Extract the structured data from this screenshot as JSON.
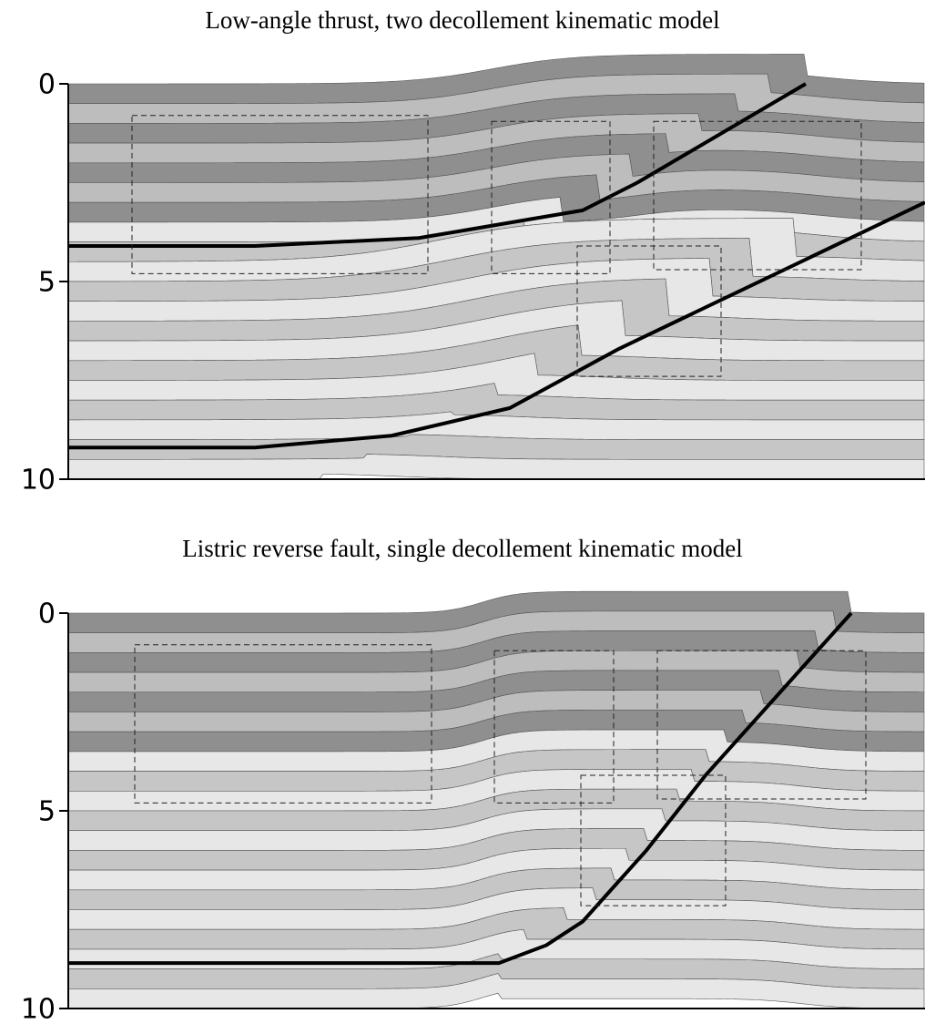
{
  "panels": [
    {
      "title": "Low-angle thrust, two decollement kinematic model",
      "ticks": [
        0,
        5,
        10
      ]
    },
    {
      "title": "Listric reverse fault, single decollement kinematic model",
      "ticks": [
        0,
        5,
        10
      ]
    }
  ]
}
